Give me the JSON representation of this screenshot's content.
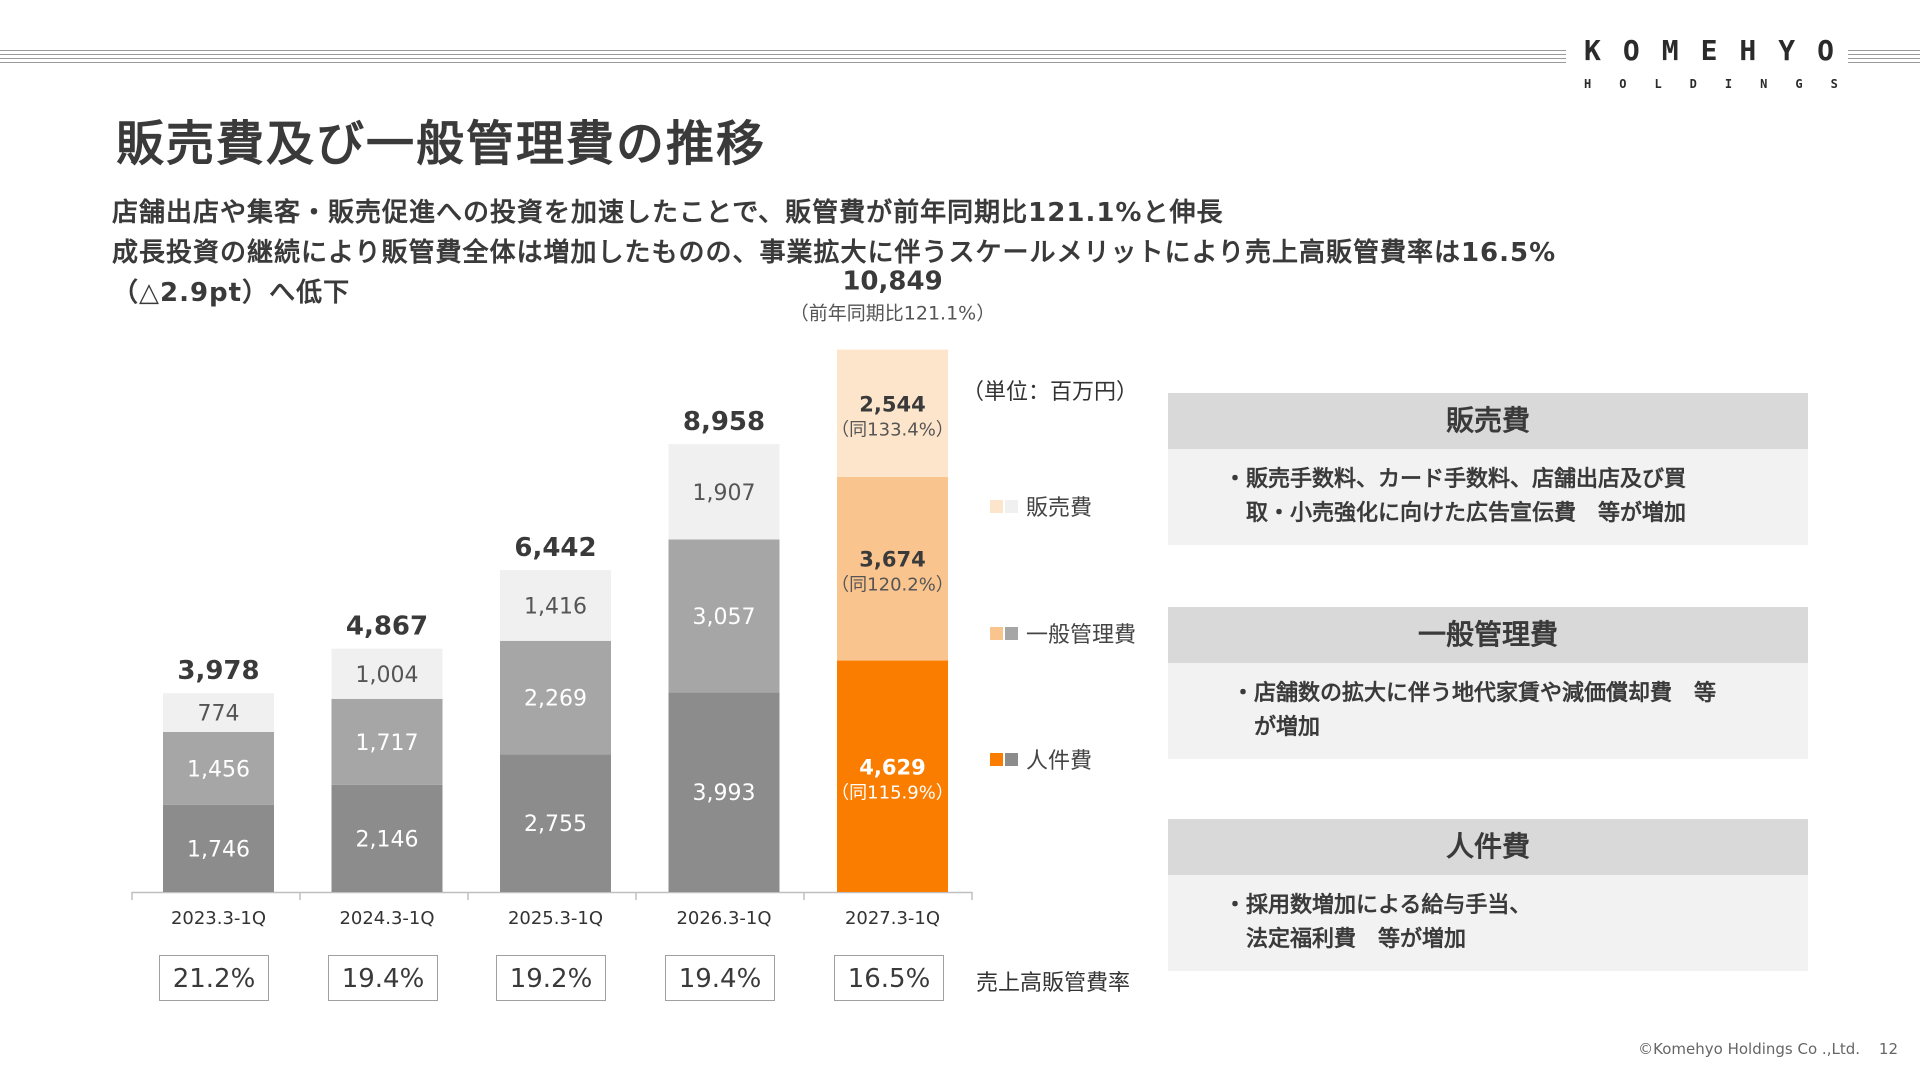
{
  "logo": {
    "line1": "KOMEHYO",
    "line2": "HOLDINGS"
  },
  "title": "販売費及び一般管理費の推移",
  "subtitle_lines": [
    "店舗出店や集客・販売促進への投資を加速したことで、販管費が前年同期比121.1%と伸長",
    "成長投資の継続により販管費全体は増加したものの、事業拡大に伴うスケールメリットにより売上高販管費率は16.5%",
    "（△2.9pt）へ低下"
  ],
  "unit": "（単位：百万円）",
  "chart_data": {
    "type": "bar",
    "stacked": true,
    "categories": [
      "2023.3-1Q",
      "2024.3-1Q",
      "2025.3-1Q",
      "2026.3-1Q",
      "2027.3-1Q"
    ],
    "series": [
      {
        "name": "人件費",
        "values": [
          1746,
          2146,
          2755,
          3993,
          4629
        ],
        "labels": [
          "1,746",
          "2,146",
          "2,755",
          "3,993",
          "4,629"
        ]
      },
      {
        "name": "一般管理費",
        "values": [
          1456,
          1717,
          2269,
          3057,
          3674
        ],
        "labels": [
          "1,456",
          "1,717",
          "2,269",
          "3,057",
          "3,674"
        ]
      },
      {
        "name": "販売費",
        "values": [
          774,
          1004,
          1416,
          1907,
          2544
        ],
        "labels": [
          "774",
          "1,004",
          "1,416",
          "1,907",
          "2,544"
        ]
      }
    ],
    "totals": [
      3978,
      4867,
      6442,
      8958,
      10849
    ],
    "total_labels": [
      "3,978",
      "4,867",
      "6,442",
      "8,958",
      "10,849"
    ],
    "total_yoy": "（前年同期比121.1%）",
    "yoy_labels": [
      "（同115.9%）",
      "（同120.2%）",
      "（同133.4%）"
    ],
    "ylim": [
      0,
      12000
    ],
    "colors": {
      "gray": [
        "#8c8c8c",
        "#a6a6a6",
        "#f0f0f0"
      ],
      "highlight": [
        "#fa7d00",
        "#f9c48d",
        "#fde5cc"
      ]
    },
    "legend": [
      "販売費",
      "一般管理費",
      "人件費"
    ],
    "ratio_label": "売上高販管費率",
    "ratios": [
      "21.2%",
      "19.4%",
      "19.2%",
      "19.4%",
      "16.5%"
    ]
  },
  "panels": [
    {
      "title": "販売費",
      "body": [
        "・販売手数料、カード手数料、店舗出店及び買",
        "　取・小売強化に向けた広告宣伝費　等が増加"
      ]
    },
    {
      "title": "一般管理費",
      "body": [
        "・店舗数の拡大に伴う地代家賃や減価償却費　等",
        "　が増加"
      ]
    },
    {
      "title": "人件費",
      "body": [
        "・採用数増加による給与手当、",
        "　法定福利費　等が増加"
      ]
    }
  ],
  "footer": "©Komehyo Holdings Co .,Ltd.",
  "page_number": "12"
}
